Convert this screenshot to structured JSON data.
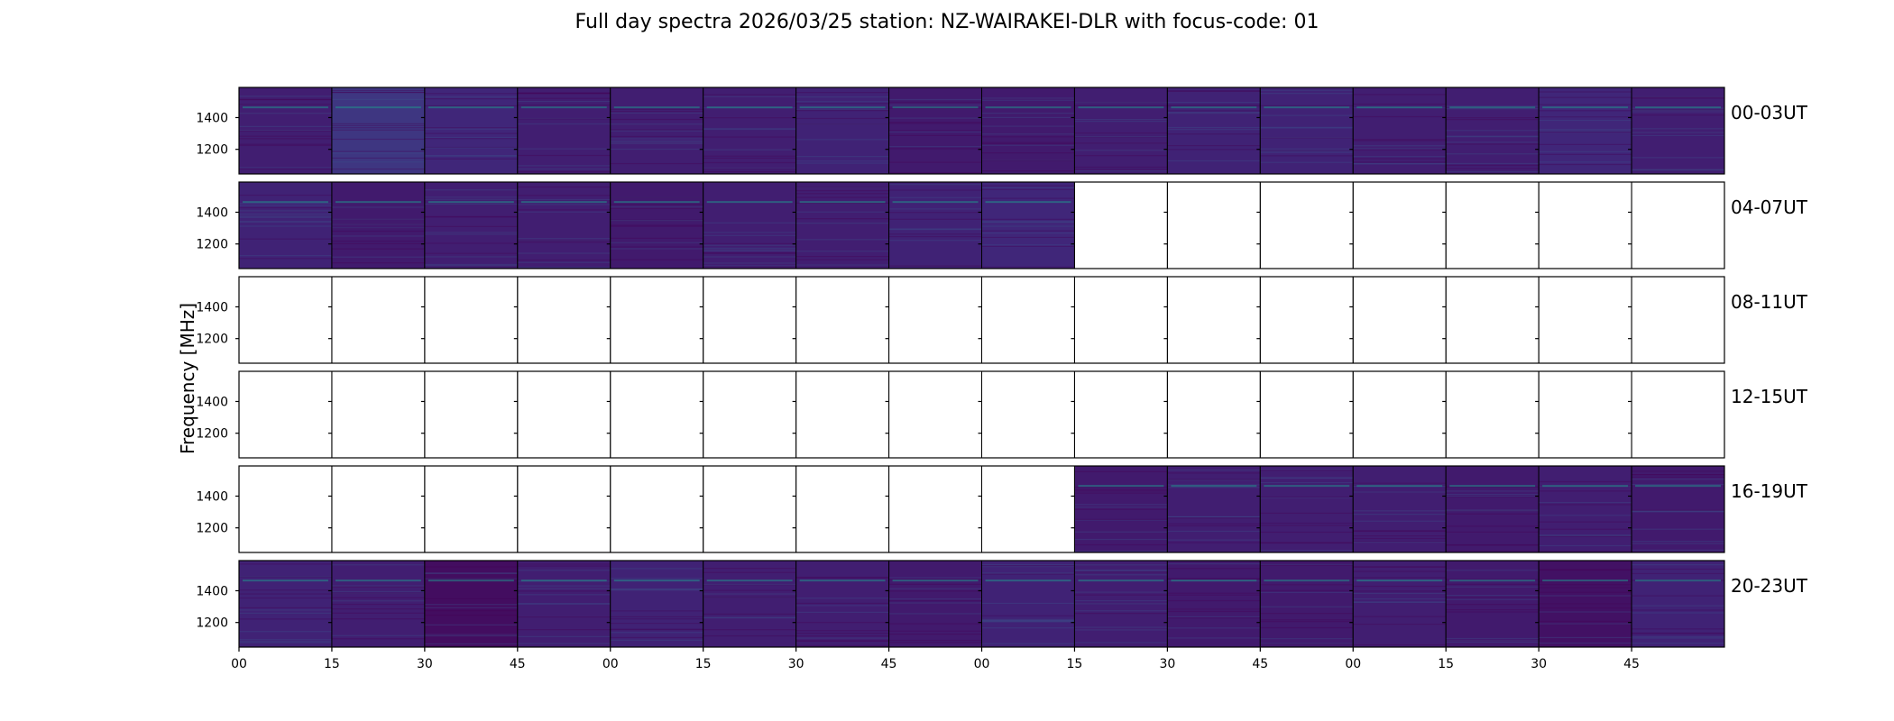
{
  "title": "Full day spectra 2026/03/25 station: NZ-WAIRAKEI-DLR with focus-code: 01",
  "ylabel": "Frequency [MHz]",
  "colors": {
    "empty": "#ffffff",
    "frame": "#000000",
    "viridis_low": "#440154",
    "viridis_base": "#3f2a7d",
    "viridis_mid": "#3b528b",
    "viridis_bright": "#21918c"
  },
  "chart_data": {
    "type": "heatmap",
    "title": "Full day spectra 2026/03/25 station: NZ-WAIRAKEI-DLR with focus-code: 01",
    "ylabel": "Frequency [MHz]",
    "ylim": [
      1045,
      1590
    ],
    "yticks": [
      1200,
      1400
    ],
    "xticks": [
      "00",
      "15",
      "30",
      "45",
      "00",
      "15",
      "30",
      "45",
      "00",
      "15",
      "30",
      "45",
      "00",
      "15",
      "30",
      "45"
    ],
    "rows": [
      {
        "label": "00-03UT",
        "tiles": [
          1,
          1,
          1,
          1,
          1,
          1,
          1,
          1,
          1,
          1,
          1,
          1,
          1,
          1,
          1,
          1
        ],
        "tone": [
          0.35,
          0.65,
          0.45,
          0.35,
          0.35,
          0.35,
          0.4,
          0.3,
          0.3,
          0.35,
          0.4,
          0.4,
          0.35,
          0.35,
          0.45,
          0.35
        ]
      },
      {
        "label": "04-07UT",
        "tiles": [
          1,
          1,
          1,
          1,
          1,
          1,
          1,
          1,
          1,
          0,
          0,
          0,
          0,
          0,
          0,
          0
        ],
        "tone": [
          0.4,
          0.3,
          0.35,
          0.35,
          0.3,
          0.35,
          0.35,
          0.4,
          0.45,
          0,
          0,
          0,
          0,
          0,
          0,
          0
        ]
      },
      {
        "label": "08-11UT",
        "tiles": [
          0,
          0,
          0,
          0,
          0,
          0,
          0,
          0,
          0,
          0,
          0,
          0,
          0,
          0,
          0,
          0
        ],
        "tone": [
          0,
          0,
          0,
          0,
          0,
          0,
          0,
          0,
          0,
          0,
          0,
          0,
          0,
          0,
          0,
          0
        ]
      },
      {
        "label": "12-15UT",
        "tiles": [
          0,
          0,
          0,
          0,
          0,
          0,
          0,
          0,
          0,
          0,
          0,
          0,
          0,
          0,
          0,
          0
        ],
        "tone": [
          0,
          0,
          0,
          0,
          0,
          0,
          0,
          0,
          0,
          0,
          0,
          0,
          0,
          0,
          0,
          0
        ]
      },
      {
        "label": "16-19UT",
        "tiles": [
          0,
          0,
          0,
          0,
          0,
          0,
          0,
          0,
          0,
          1,
          1,
          1,
          1,
          1,
          1,
          1
        ],
        "tone": [
          0,
          0,
          0,
          0,
          0,
          0,
          0,
          0,
          0,
          0.3,
          0.35,
          0.35,
          0.35,
          0.3,
          0.35,
          0.3
        ]
      },
      {
        "label": "20-23UT",
        "tiles": [
          1,
          1,
          1,
          1,
          1,
          1,
          1,
          1,
          1,
          1,
          1,
          1,
          1,
          1,
          1,
          1
        ],
        "tone": [
          0.4,
          0.35,
          0.15,
          0.35,
          0.4,
          0.35,
          0.35,
          0.3,
          0.4,
          0.35,
          0.3,
          0.3,
          0.35,
          0.3,
          0.2,
          0.4
        ]
      }
    ]
  }
}
